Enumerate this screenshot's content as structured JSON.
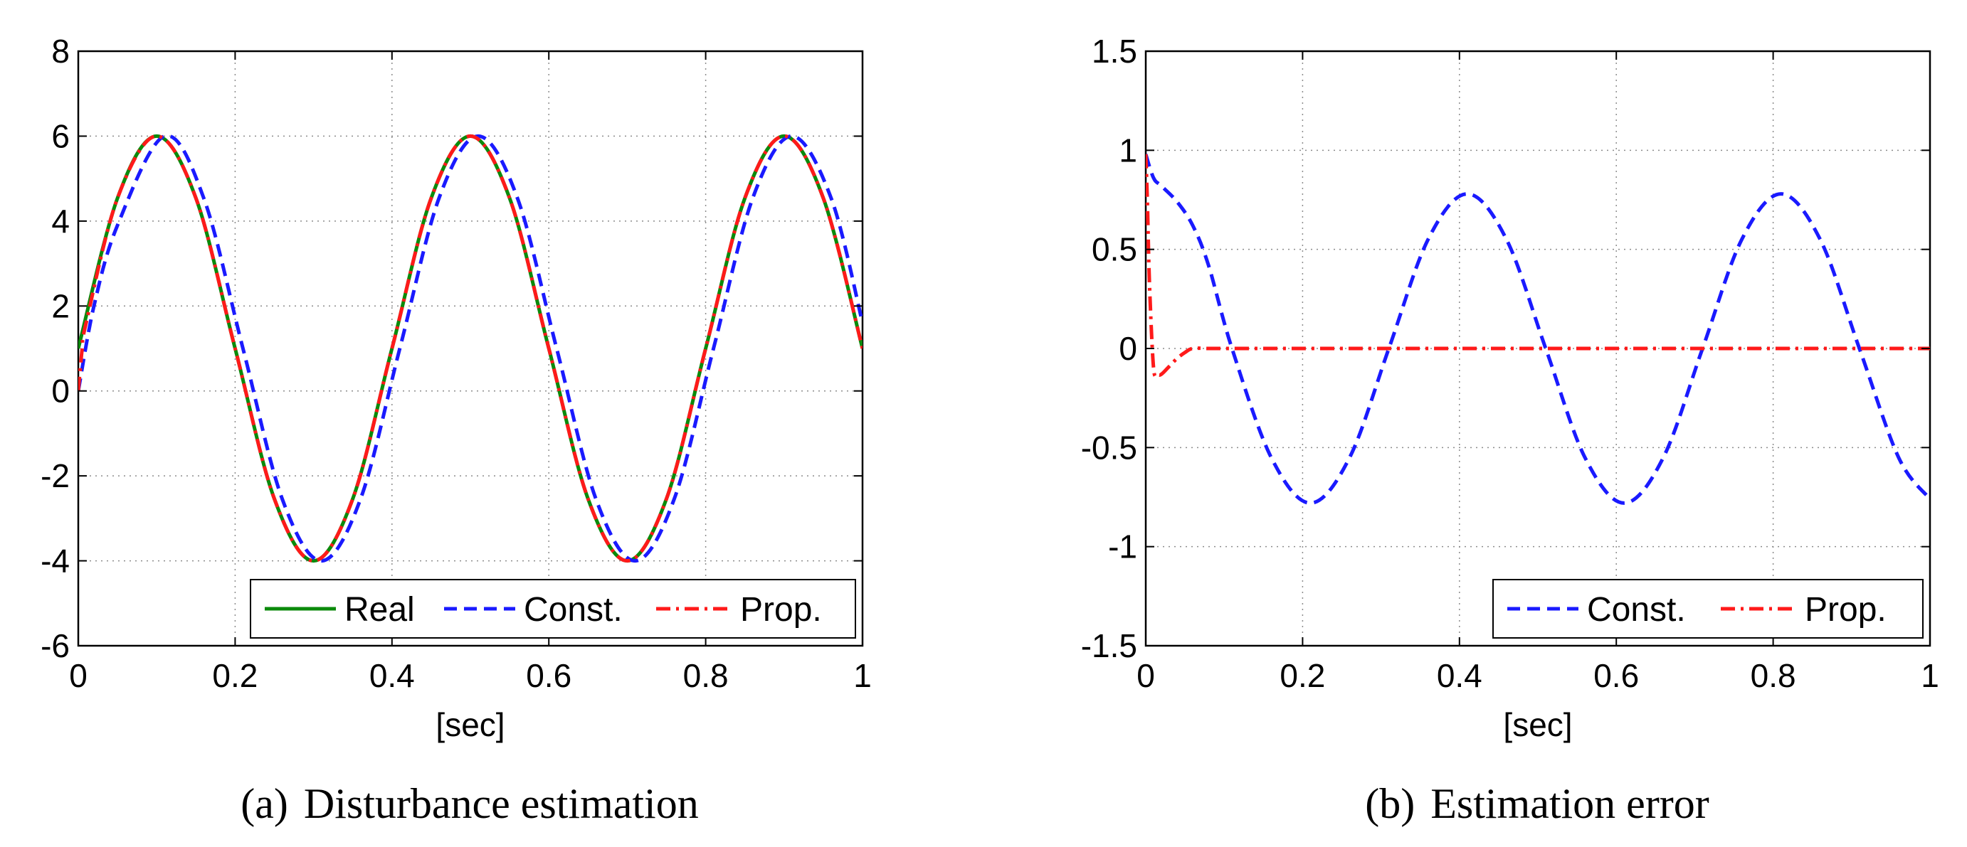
{
  "chart_data": [
    {
      "id": "a",
      "type": "line",
      "caption_label": "(a)",
      "caption_text": "Disturbance estimation",
      "xlabel": "[sec]",
      "ylabel": "",
      "xlim": [
        0,
        1
      ],
      "ylim": [
        -6,
        8
      ],
      "xticks": [
        0,
        0.2,
        0.4,
        0.6,
        0.8,
        1
      ],
      "xtick_labels": [
        "0",
        "0.2",
        "0.4",
        "0.6",
        "0.8",
        "1"
      ],
      "yticks": [
        -6,
        -4,
        -2,
        0,
        2,
        4,
        6,
        8
      ],
      "ytick_labels": [
        "-6",
        "-4",
        "-2",
        "0",
        "2",
        "4",
        "6",
        "8"
      ],
      "grid": true,
      "legend_position": "bottom-right",
      "series": [
        {
          "name": "Real",
          "color": "#0b8a0b",
          "style": "solid",
          "x": [
            0,
            0.05,
            0.1,
            0.15,
            0.2,
            0.25,
            0.3,
            0.35,
            0.4,
            0.45,
            0.5,
            0.55,
            0.6,
            0.65,
            0.7,
            0.75,
            0.8,
            0.85,
            0.9,
            0.95,
            1.0
          ],
          "y": [
            1.0,
            4.54,
            6.0,
            4.54,
            1.0,
            -2.54,
            -4.0,
            -2.54,
            1.0,
            4.54,
            6.0,
            4.54,
            1.0,
            -2.54,
            -4.0,
            -2.54,
            1.0,
            4.54,
            6.0,
            4.54,
            1.0
          ]
        },
        {
          "name": "Const.",
          "color": "#1a1aff",
          "style": "dashed",
          "x": [
            0,
            0.02,
            0.05,
            0.11,
            0.16,
            0.21,
            0.26,
            0.31,
            0.36,
            0.41,
            0.46,
            0.51,
            0.56,
            0.61,
            0.66,
            0.71,
            0.76,
            0.81,
            0.86,
            0.91,
            0.96,
            1.0
          ],
          "y": [
            0.0,
            2.0,
            3.9,
            6.0,
            4.54,
            1.0,
            -2.54,
            -4.0,
            -2.54,
            1.0,
            4.54,
            6.0,
            4.54,
            1.0,
            -2.54,
            -4.0,
            -2.54,
            1.0,
            4.54,
            6.0,
            4.54,
            1.6
          ]
        },
        {
          "name": "Prop.",
          "color": "#ff1a1a",
          "style": "dashdot",
          "x": [
            0,
            0.005,
            0.01,
            0.05,
            0.1,
            0.15,
            0.2,
            0.25,
            0.3,
            0.35,
            0.4,
            0.45,
            0.5,
            0.55,
            0.6,
            0.65,
            0.7,
            0.75,
            0.8,
            0.85,
            0.9,
            0.95,
            1.0
          ],
          "y": [
            0.0,
            1.0,
            1.6,
            4.54,
            6.0,
            4.54,
            1.0,
            -2.54,
            -4.0,
            -2.54,
            1.0,
            4.54,
            6.0,
            4.54,
            1.0,
            -2.54,
            -4.0,
            -2.54,
            1.0,
            4.54,
            6.0,
            4.54,
            1.0
          ]
        }
      ]
    },
    {
      "id": "b",
      "type": "line",
      "caption_label": "(b)",
      "caption_text": "Estimation error",
      "xlabel": "[sec]",
      "ylabel": "",
      "xlim": [
        0,
        1
      ],
      "ylim": [
        -1.5,
        1.5
      ],
      "xticks": [
        0,
        0.2,
        0.4,
        0.6,
        0.8,
        1
      ],
      "xtick_labels": [
        "0",
        "0.2",
        "0.4",
        "0.6",
        "0.8",
        "1"
      ],
      "yticks": [
        -1.5,
        -1,
        -0.5,
        0,
        0.5,
        1,
        1.5
      ],
      "ytick_labels": [
        "-1.5",
        "-1",
        "-0.5",
        "0",
        "0.5",
        "1",
        "1.5"
      ],
      "grid": true,
      "legend_position": "bottom-right",
      "series": [
        {
          "name": "Const.",
          "color": "#1a1aff",
          "style": "dashed",
          "x": [
            0,
            0.01,
            0.02,
            0.04,
            0.06,
            0.08,
            0.11,
            0.16,
            0.21,
            0.26,
            0.31,
            0.36,
            0.41,
            0.46,
            0.51,
            0.56,
            0.61,
            0.66,
            0.71,
            0.76,
            0.81,
            0.86,
            0.91,
            0.96,
            1.0
          ],
          "y": [
            0.98,
            0.86,
            0.82,
            0.74,
            0.62,
            0.42,
            0.0,
            -0.55,
            -0.78,
            -0.55,
            0.0,
            0.55,
            0.78,
            0.55,
            0.0,
            -0.55,
            -0.78,
            -0.55,
            0.0,
            0.55,
            0.78,
            0.55,
            0.0,
            -0.55,
            -0.76
          ]
        },
        {
          "name": "Prop.",
          "color": "#ff1a1a",
          "style": "dashdot",
          "x": [
            0,
            0.002,
            0.005,
            0.01,
            0.015,
            0.02,
            0.03,
            0.04,
            0.05,
            0.06,
            0.08,
            0.1,
            0.2,
            0.4,
            0.6,
            0.8,
            1.0
          ],
          "y": [
            0.98,
            0.75,
            0.3,
            -0.1,
            -0.13,
            -0.13,
            -0.09,
            -0.05,
            -0.02,
            0.0,
            0.0,
            0.0,
            0.0,
            0.0,
            0.0,
            0.0,
            0.0
          ]
        }
      ]
    }
  ]
}
